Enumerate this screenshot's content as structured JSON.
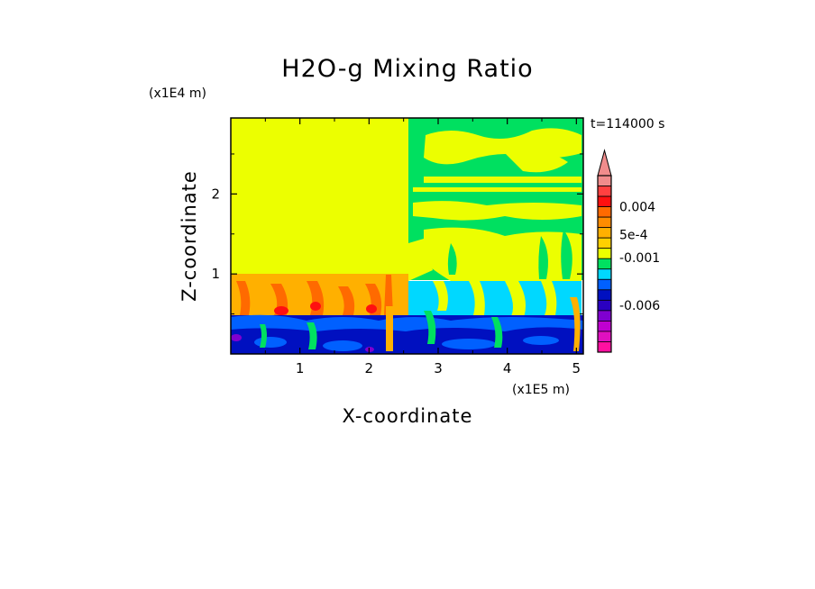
{
  "chart_data": {
    "type": "heatmap",
    "title": "H2O-g Mixing Ratio",
    "time_label": "t=114000 s",
    "xlabel": "X-coordinate",
    "ylabel": "Z-coordinate",
    "x_scale_label": "(x1E5 m)",
    "y_scale_label": "(x1E4 m)",
    "xlim": [
      0,
      5.1
    ],
    "ylim": [
      0,
      2.95
    ],
    "x_ticks": [
      1,
      2,
      3,
      4,
      5
    ],
    "y_ticks": [
      1,
      2
    ],
    "x_tick_labels": [
      "1",
      "2",
      "3",
      "4",
      "5"
    ],
    "y_tick_labels": [
      "1",
      "2"
    ],
    "colorbar": {
      "levels_top_to_bottom": [
        "#f08c8c",
        "#ff4040",
        "#ff1010",
        "#ff6a00",
        "#ff8c00",
        "#ffb000",
        "#ffd000",
        "#ecff00",
        "#00e060",
        "#00d8ff",
        "#0060ff",
        "#0010c0",
        "#2a00c0",
        "#8000d0",
        "#c000d0",
        "#e010c0",
        "#ff10a0"
      ],
      "labels": [
        {
          "text": "0.004",
          "value": 0.004
        },
        {
          "text": "5e-4",
          "value": 0.0005
        },
        {
          "text": "-0.001",
          "value": -0.001
        },
        {
          "text": "-0.006",
          "value": -0.006
        }
      ]
    },
    "regions": [
      {
        "name": "upper-left uniform",
        "x": [
          0,
          2.6
        ],
        "z": [
          1.0,
          2.95
        ],
        "color": "#ecff00"
      },
      {
        "name": "upper-right green background",
        "x": [
          2.6,
          5.1
        ],
        "z": [
          1.4,
          2.95
        ],
        "color": "#00e060"
      },
      {
        "name": "left middle orange band",
        "x": [
          0,
          2.6
        ],
        "z": [
          0.5,
          1.0
        ],
        "color": "#ff8c00"
      },
      {
        "name": "bottom blue layer",
        "x": [
          0,
          5.1
        ],
        "z": [
          0,
          0.5
        ],
        "color": "#0010c0"
      },
      {
        "name": "right middle cyan band",
        "x": [
          2.6,
          5.1
        ],
        "z": [
          0.45,
          0.9
        ],
        "color": "#00d8ff"
      }
    ]
  }
}
